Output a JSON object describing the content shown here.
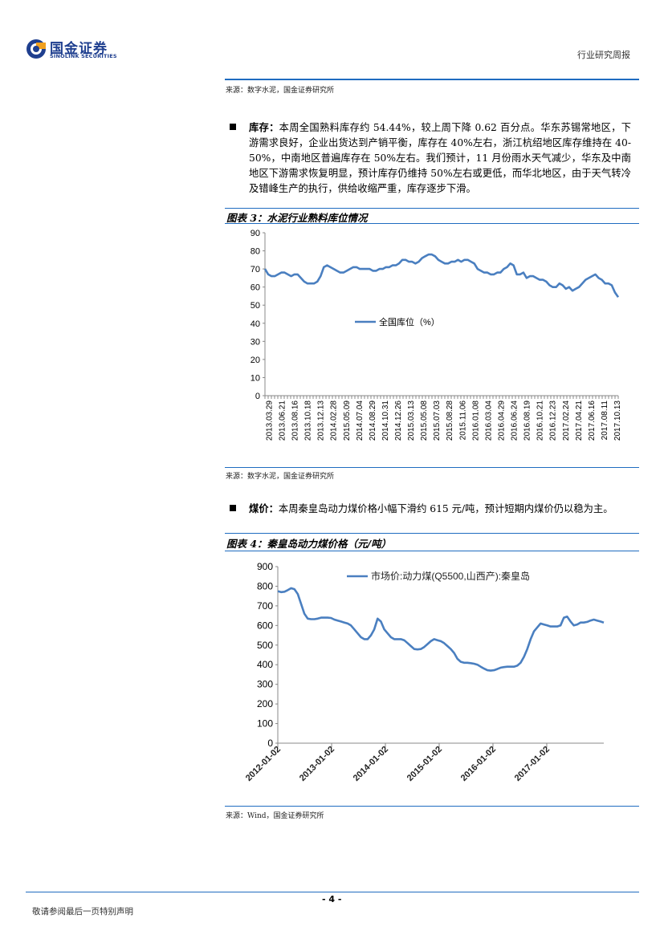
{
  "header": {
    "logo_cn": "国金证券",
    "logo_en": "SINOLINK SECURITIES",
    "report_type": "行业研究周报"
  },
  "top_source": "来源：数字水泥，国金证券研究所",
  "inventory_bullet": {
    "label": "库存：",
    "text": "本周全国熟料库存约 54.44%，较上周下降 0.62 百分点。华东苏锡常地区，下游需求良好，企业出货达到产销平衡，库存在 40%左右，浙江杭绍地区库存维持在 40-50%，中南地区普遍库存在 50%左右。我们预计，11 月份雨水天气减少，华东及中南地区下游需求恢复明显，预计库存仍维持 50%左右或更低，而华北地区，由于天气转冷及错峰生产的执行，供给收缩严重，库存逐步下滑。"
  },
  "fig3": {
    "title": "图表 3：水泥行业熟料库位情况",
    "source": "来源：数字水泥，国金证券研究所"
  },
  "coal_bullet": {
    "label": "煤价：",
    "text": "本周秦皇岛动力煤价格小幅下滑约 615 元/吨，预计短期内煤价仍以稳为主。"
  },
  "fig4": {
    "title": "图表 4：秦皇岛动力煤价格（元/吨）",
    "source": "来源：Wind，国金证券研究所"
  },
  "footer": {
    "page": "- 4 -",
    "disclaimer": "敬请参阅最后一页特别声明"
  },
  "colors": {
    "brand_blue": "#1f3f8f",
    "rule_blue": "#1f6cc0",
    "series_blue": "#4a7fc0"
  },
  "chart_data": [
    {
      "type": "line",
      "title": "",
      "ylim": [
        0,
        90
      ],
      "yticks": [
        0,
        10,
        20,
        30,
        40,
        50,
        60,
        70,
        80,
        90
      ],
      "legend_position": "center",
      "x_tick_labels": [
        "2013.03.29",
        "2013.06.21",
        "2013.08.16",
        "2013.10.18",
        "2013.12.13",
        "2014.02.28",
        "2015.05.09",
        "2014.07.04",
        "2014.08.29",
        "2014.10.31",
        "2014.12.26",
        "2015.03.13",
        "2015.05.08",
        "2015.07.03",
        "2015.08.28",
        "2015.11.06",
        "2016.01.08",
        "2016.03.04",
        "2016.04.29",
        "2016.06.24",
        "2016.08.19",
        "2016.10.21",
        "2016.12.23",
        "2017.02.24",
        "2017.04.21",
        "2017.06.16",
        "2017.08.11",
        "2017.10.13"
      ],
      "series": [
        {
          "name": "全国库位（%）",
          "values": [
            70,
            67,
            66,
            66,
            67,
            68,
            68,
            67,
            66,
            67,
            67,
            65,
            63,
            62,
            62,
            62,
            63,
            66,
            71,
            72,
            71,
            70,
            69,
            68,
            68,
            69,
            70,
            71,
            71,
            70,
            70,
            70,
            70,
            69,
            69,
            70,
            70,
            71,
            71,
            72,
            72,
            73,
            75,
            75,
            74,
            74,
            73,
            74,
            76,
            77,
            78,
            78,
            77,
            75,
            74,
            73,
            73,
            74,
            74,
            75,
            74,
            75,
            75,
            74,
            73,
            70,
            69,
            68,
            68,
            67,
            67,
            68,
            68,
            70,
            71,
            73,
            72,
            67,
            67,
            68,
            65,
            66,
            66,
            65,
            64,
            64,
            63,
            61,
            60,
            60,
            62,
            61,
            59,
            60,
            58,
            59,
            60,
            62,
            64,
            65,
            66,
            67,
            65,
            64,
            62,
            62,
            61,
            57,
            54.44
          ]
        }
      ]
    },
    {
      "type": "line",
      "title": "",
      "ylim": [
        0,
        900
      ],
      "yticks": [
        0,
        100,
        200,
        300,
        400,
        500,
        600,
        700,
        800,
        900
      ],
      "legend_position": "top-center",
      "x_tick_labels": [
        "2012-01-02",
        "2013-01-02",
        "2014-01-02",
        "2015-01-02",
        "2016-01-02",
        "2017-01-02"
      ],
      "series": [
        {
          "name": "市场价:动力煤(Q5500,山西产):秦皇岛",
          "values": [
            775,
            770,
            772,
            780,
            790,
            785,
            760,
            710,
            660,
            635,
            632,
            632,
            635,
            640,
            640,
            640,
            638,
            630,
            625,
            620,
            615,
            610,
            600,
            580,
            560,
            540,
            530,
            530,
            550,
            580,
            635,
            620,
            580,
            560,
            540,
            530,
            530,
            530,
            525,
            510,
            495,
            480,
            478,
            480,
            490,
            505,
            520,
            530,
            525,
            520,
            510,
            495,
            480,
            460,
            430,
            415,
            410,
            410,
            408,
            405,
            400,
            390,
            380,
            372,
            370,
            372,
            378,
            385,
            388,
            390,
            390,
            390,
            395,
            410,
            440,
            480,
            530,
            570,
            590,
            610,
            605,
            600,
            595,
            595,
            595,
            600,
            640,
            645,
            620,
            600,
            605,
            615,
            615,
            618,
            625,
            630,
            625,
            620,
            615
          ]
        }
      ]
    }
  ]
}
